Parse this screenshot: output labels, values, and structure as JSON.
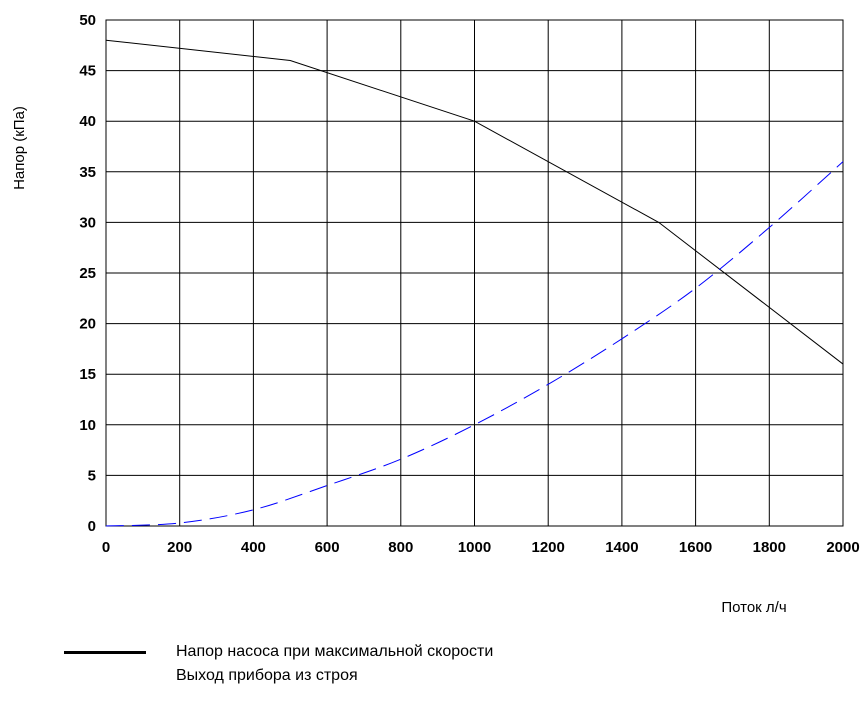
{
  "chart_data": {
    "type": "line",
    "title": "",
    "xlabel": "Поток л/ч",
    "ylabel": "Напор (кПа)",
    "xlim": [
      0,
      2000
    ],
    "ylim": [
      0,
      50
    ],
    "x_ticks": [
      "0",
      "200",
      "400",
      "600",
      "800",
      "1000",
      "1200",
      "1400",
      "1600",
      "1800",
      "2000"
    ],
    "y_ticks": [
      "0",
      "5",
      "10",
      "15",
      "20",
      "25",
      "30",
      "35",
      "40",
      "45",
      "50"
    ],
    "grid": true,
    "legend_position": "bottom-left",
    "series": [
      {
        "name": "Напор насоса при максимальной скорости",
        "color": "#000000",
        "style": "solid",
        "points": [
          [
            0,
            48
          ],
          [
            500,
            46
          ],
          [
            1000,
            40
          ],
          [
            1500,
            30
          ],
          [
            2000,
            16
          ]
        ]
      },
      {
        "name": "Выход прибора из строя",
        "color": "#0000ff",
        "style": "dashed",
        "points": [
          [
            0,
            0
          ],
          [
            200,
            0.3
          ],
          [
            400,
            1.6
          ],
          [
            600,
            4
          ],
          [
            800,
            6.6
          ],
          [
            1000,
            10
          ],
          [
            1200,
            14
          ],
          [
            1400,
            18.5
          ],
          [
            1600,
            23.5
          ],
          [
            1800,
            29.5
          ],
          [
            2000,
            36
          ]
        ]
      }
    ]
  }
}
